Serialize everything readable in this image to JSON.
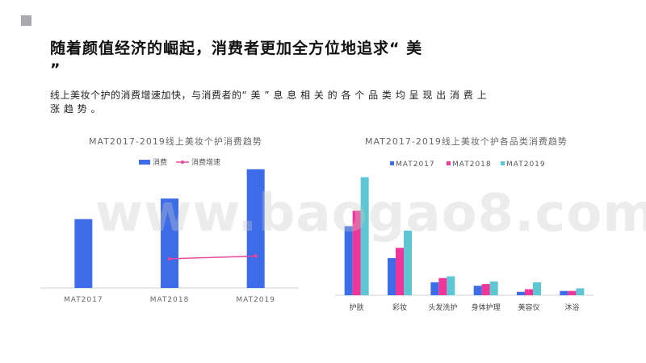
{
  "slide": {
    "headline": "随着颜值经济的崛起，消费者更加全方位地追求“ 美 ”",
    "subtext": "线上美妆个护的消费增速加快，与消费者的“ 美 ” 息 息 相 关 的 各 个 品 类 均 呈 现 出 消 费 上 涨 趋 势 。",
    "watermark": "www.baogao8.com"
  },
  "chart_data": [
    {
      "type": "bar",
      "title": "MAT2017-2019线上美妆个护消费趋势",
      "categories": [
        "MAT2017",
        "MAT2018",
        "MAT2019"
      ],
      "series": [
        {
          "name": "消费",
          "type": "bar",
          "color": "#3d6ce8",
          "values": [
            87,
            113,
            150
          ]
        },
        {
          "name": "消费增速",
          "type": "line",
          "color": "#e8459b",
          "values": [
            null,
            30,
            33
          ]
        }
      ],
      "legend": "top",
      "grid": false
    },
    {
      "type": "bar",
      "title": "MAT2017-2019线上美妆个护各品类消费趋势",
      "categories": [
        "护肤",
        "彩妆",
        "头发洗护",
        "身体护理",
        "美容仪",
        "沐浴"
      ],
      "series": [
        {
          "name": "MAT2017",
          "color": "#3d6ce8",
          "values": [
            80,
            43,
            15,
            11,
            4,
            5
          ]
        },
        {
          "name": "MAT2018",
          "color": "#f0359a",
          "values": [
            98,
            55,
            20,
            13,
            7,
            5
          ]
        },
        {
          "name": "MAT2019",
          "color": "#5cc7d2",
          "values": [
            137,
            75,
            22,
            16,
            15,
            8
          ]
        }
      ],
      "legend": "top",
      "grid": false
    }
  ]
}
